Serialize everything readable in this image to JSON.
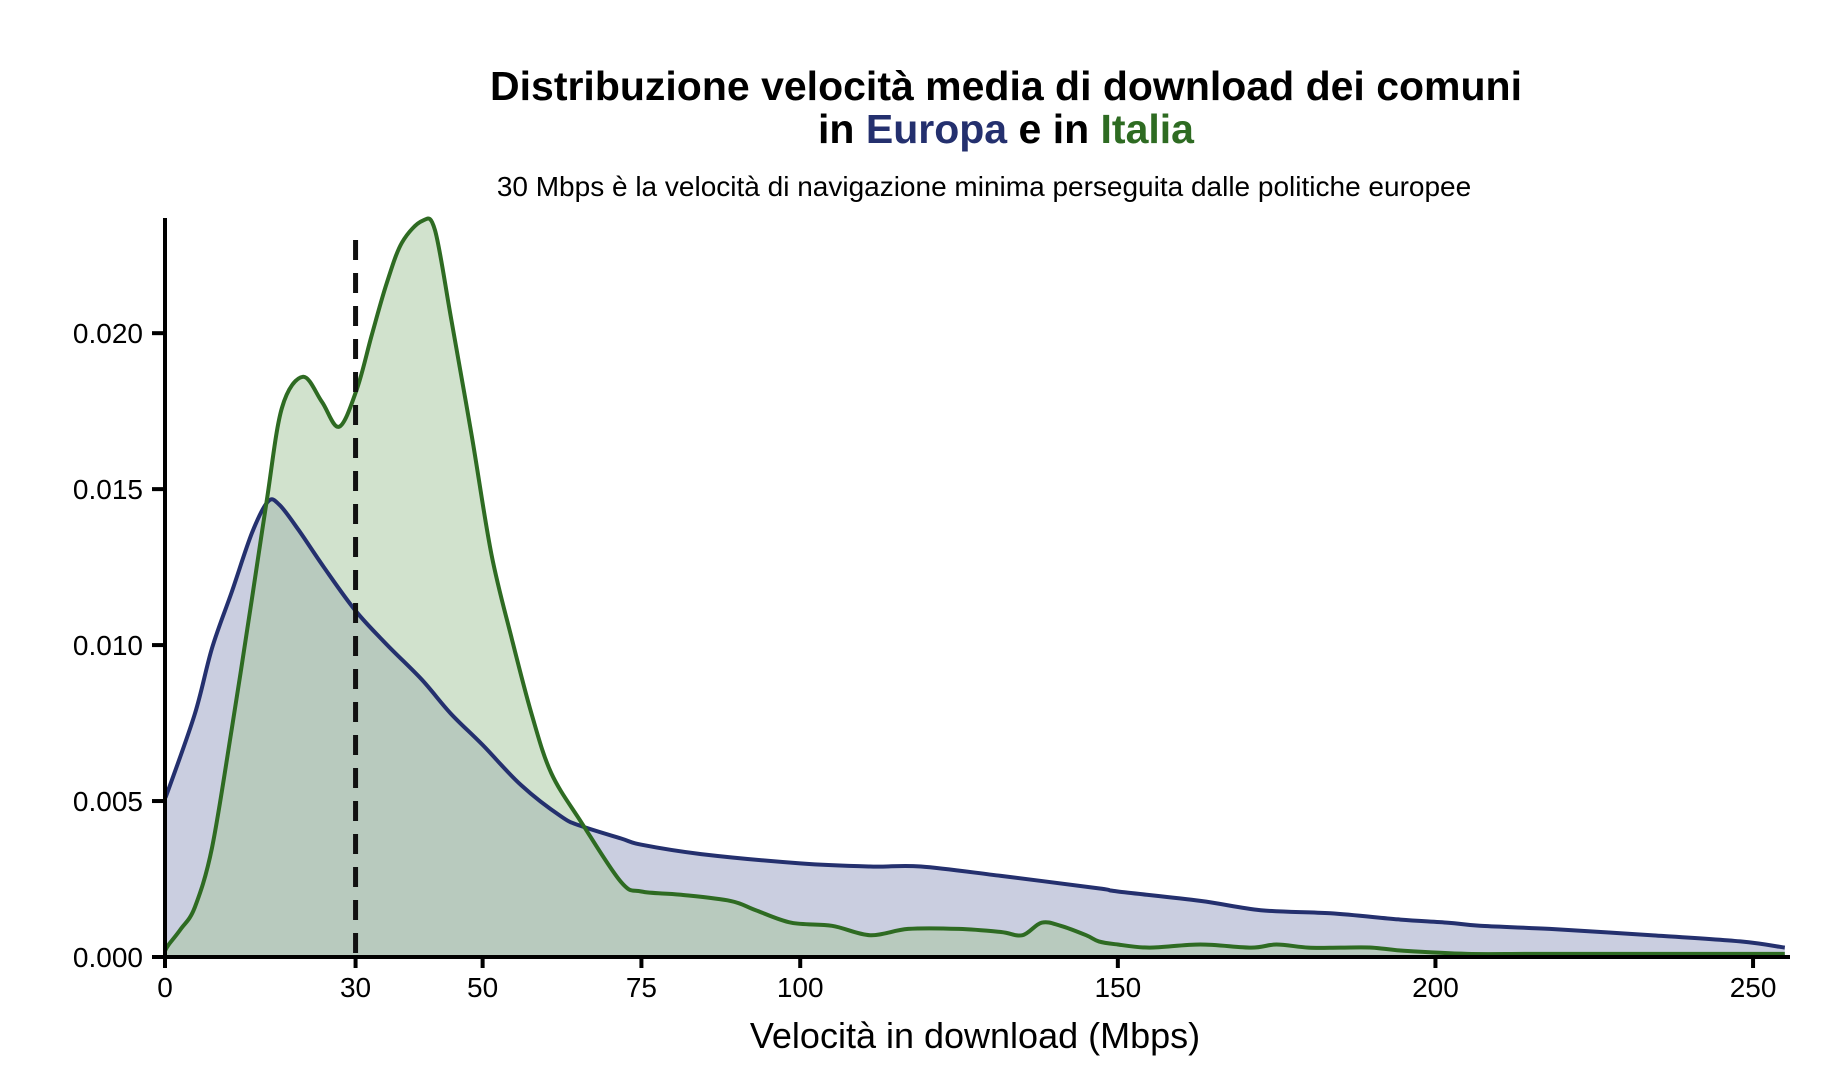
{
  "chart_data": {
    "type": "area",
    "title_line1": "Distribuzione velocità media di download dei comuni",
    "title_line2_parts": [
      {
        "text": "in ",
        "color": "#000000"
      },
      {
        "text": "Europa",
        "color": "#24306e"
      },
      {
        "text": " e in ",
        "color": "#000000"
      },
      {
        "text": "Italia",
        "color": "#2e6b22"
      }
    ],
    "subtitle": "30 Mbps è la velocità di navigazione minima perseguita dalle politiche europee",
    "xlabel": "Velocità in download (Mbps)",
    "ylabel": "",
    "xlim": [
      0,
      255.5
    ],
    "ylim": [
      0,
      0.0235
    ],
    "grid": false,
    "legend": "none",
    "x_ticks": [
      0,
      30,
      50,
      75,
      100,
      150,
      200,
      250
    ],
    "x_tick_labels": [
      "0",
      "30",
      "50",
      "75",
      "100",
      "150",
      "200",
      "250"
    ],
    "y_ticks": [
      0,
      0.005,
      0.01,
      0.015,
      0.02
    ],
    "y_tick_labels": [
      "0.000",
      "0.005",
      "0.010",
      "0.015",
      "0.020"
    ],
    "reference_line": {
      "x": 30,
      "style": "dashed",
      "color": "#111111"
    },
    "series": [
      {
        "name": "Europa",
        "line_color": "#24306e",
        "fill_color": "#cbcfdf",
        "x": [
          0,
          0.6,
          4.7,
          7.4,
          10.5,
          13.7,
          16.2,
          18,
          21,
          25,
          30,
          35,
          40.4,
          45,
          50,
          56.1,
          62.4,
          65.5,
          71.8,
          75,
          84.4,
          100,
          111,
          119,
          131.6,
          147,
          150,
          163,
          172.5,
          183.5,
          194.5,
          202,
          207,
          218,
          234,
          248,
          255
        ],
        "y": [
          0.0051,
          0.0054,
          0.0078,
          0.0099,
          0.0117,
          0.0136,
          0.0146,
          0.0145,
          0.0137,
          0.0125,
          0.0111,
          0.01,
          0.0089,
          0.0078,
          0.0068,
          0.0055,
          0.0045,
          0.0042,
          0.0038,
          0.0036,
          0.0033,
          0.003,
          0.0029,
          0.0029,
          0.0026,
          0.0022,
          0.0021,
          0.0018,
          0.0015,
          0.0014,
          0.0012,
          0.0011,
          0.001,
          0.0009,
          0.0007,
          0.0005,
          0.0003
        ]
      },
      {
        "name": "Italia",
        "line_color": "#2e6b22",
        "fill_color": "#d0e0cc",
        "x": [
          0,
          0.6,
          2.5,
          4.7,
          7.4,
          10.5,
          13.7,
          16,
          18.4,
          21.7,
          24.7,
          27.4,
          30.2,
          32.5,
          34.9,
          37.3,
          40.5,
          42.5,
          45.1,
          48.3,
          51.4,
          54.6,
          57.7,
          60.8,
          65.6,
          71.8,
          75,
          81,
          89,
          93,
          98.6,
          105,
          111,
          117,
          125,
          131.6,
          135,
          138,
          141,
          145,
          147,
          150,
          155,
          163,
          171,
          175,
          180,
          185,
          190,
          195,
          205,
          215,
          230,
          245,
          255
        ],
        "y": [
          0.0002,
          0.0004,
          0.0009,
          0.0016,
          0.0035,
          0.0073,
          0.0115,
          0.0146,
          0.0176,
          0.0186,
          0.0178,
          0.017,
          0.0182,
          0.0199,
          0.0216,
          0.0229,
          0.0236,
          0.0233,
          0.0204,
          0.0167,
          0.0129,
          0.0102,
          0.0078,
          0.0059,
          0.0043,
          0.0024,
          0.0021,
          0.002,
          0.0018,
          0.0015,
          0.0011,
          0.001,
          0.0007,
          0.0009,
          0.0009,
          0.0008,
          0.0007,
          0.0011,
          0.001,
          0.0007,
          0.0005,
          0.0004,
          0.0003,
          0.0004,
          0.0003,
          0.0004,
          0.0003,
          0.0003,
          0.0003,
          0.0002,
          0.0001,
          0.0001,
          0.0001,
          0.0001,
          0.0001
        ]
      }
    ]
  }
}
